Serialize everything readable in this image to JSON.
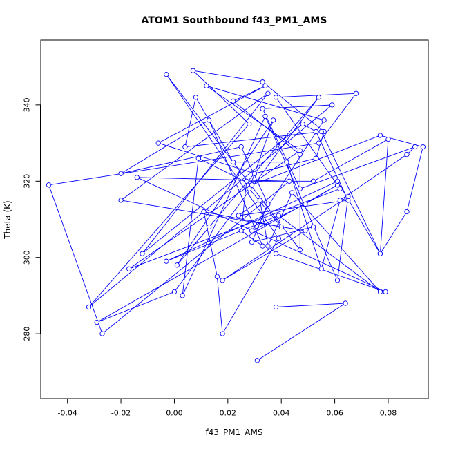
{
  "chart_data": {
    "type": "line",
    "title": "ATOM1 Southbound f43_PM1_AMS",
    "xlabel": "f43_PM1_AMS",
    "ylabel": "Theta (K)",
    "xlim": [
      -0.05,
      0.095
    ],
    "ylim": [
      263,
      357
    ],
    "x_ticks": [
      -0.04,
      -0.02,
      0.0,
      0.02,
      0.04,
      0.06,
      0.08
    ],
    "x_tick_labels": [
      "-0.04",
      "-0.02",
      "0.00",
      "0.02",
      "0.04",
      "0.06",
      "0.08"
    ],
    "y_ticks": [
      280,
      300,
      320,
      340
    ],
    "y_tick_labels": [
      "280",
      "300",
      "320",
      "340"
    ],
    "grid": false,
    "series_color": "#0000ff",
    "marker": "open-circle",
    "series": [
      {
        "name": "",
        "x": [
          0.031,
          0.064,
          0.038,
          0.038,
          0.079,
          -0.014,
          0.043,
          -0.027,
          -0.047,
          0.054,
          0.068,
          0.038,
          0.062,
          -0.017,
          0.047,
          0.012,
          0.056,
          0.029,
          0.049,
          0.061,
          -0.029,
          0.0,
          0.054,
          0.001,
          0.037,
          0.028,
          0.04,
          0.011,
          0.016,
          0.018,
          0.039,
          -0.003,
          0.047,
          0.047,
          0.022,
          0.034,
          -0.006,
          0.03,
          0.053,
          0.056,
          0.033,
          0.007,
          0.028,
          -0.032,
          0.059,
          0.033,
          0.047,
          0.09,
          0.087,
          0.062,
          0.055,
          0.042,
          0.022,
          0.008,
          0.004,
          0.055,
          0.077,
          0.061,
          -0.003,
          0.039,
          0.077,
          0.044,
          0.035,
          0.032,
          0.024,
          0.065,
          0.053,
          0.048,
          -0.012,
          0.035,
          -0.02,
          0.049,
          0.018,
          0.065,
          0.061,
          0.034,
          0.003,
          0.009,
          0.029,
          0.077,
          0.093,
          0.087,
          0.077,
          0.08,
          0.052,
          0.027,
          0.025,
          0.033,
          0.013,
          -0.02,
          0.025,
          0.035,
          0.029,
          0.052,
          0.013
        ],
        "y": [
          273,
          288,
          287,
          301,
          291,
          321,
          320,
          280,
          319,
          330,
          343,
          342,
          318,
          297,
          328,
          345,
          336,
          307,
          314,
          319,
          283,
          291,
          342,
          298,
          336,
          318,
          308,
          312,
          295,
          280,
          305,
          348,
          302,
          327,
          341,
          345,
          330,
          322,
          326,
          333,
          346,
          349,
          335,
          287,
          340,
          339,
          318,
          329,
          327,
          315,
          297,
          325,
          325,
          342,
          329,
          333,
          301,
          320,
          299,
          311,
          291,
          317,
          303,
          315,
          311,
          315,
          333,
          335,
          301,
          343,
          315,
          307,
          294,
          316,
          294,
          337,
          290,
          326,
          319,
          332,
          329,
          312,
          301,
          331,
          320,
          320,
          307,
          303,
          336,
          322,
          329,
          314,
          304,
          308,
          308
        ]
      }
    ]
  }
}
